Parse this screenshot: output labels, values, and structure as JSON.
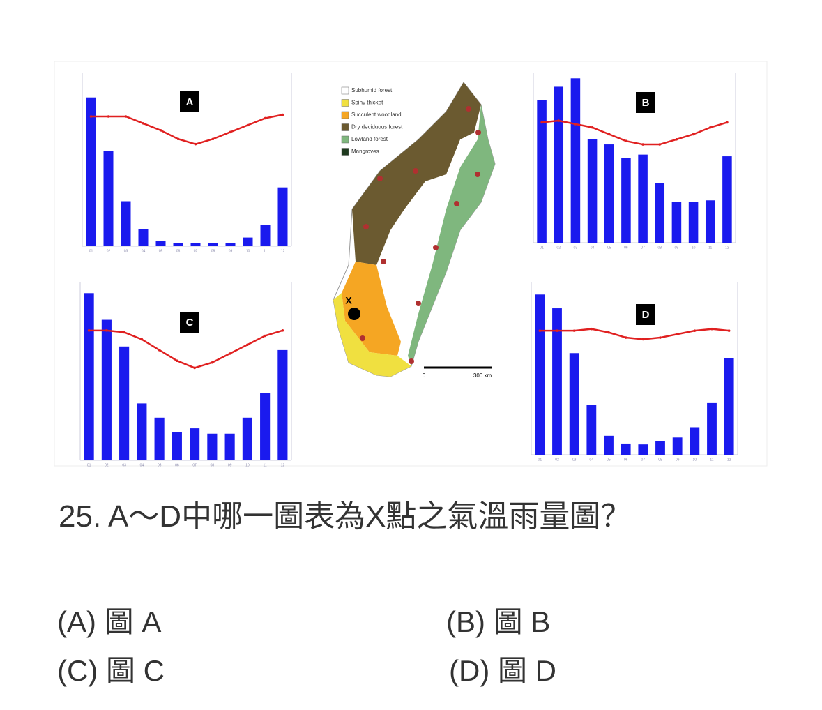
{
  "chart_data": [
    {
      "type": "bar",
      "title": "A",
      "categories": [
        "01",
        "02",
        "03",
        "04",
        "05",
        "06",
        "07",
        "08",
        "09",
        "10",
        "11",
        "12"
      ],
      "ylim": [
        0,
        100
      ],
      "series": [
        {
          "color": "#1a1aee",
          "values": [
            86,
            55,
            26,
            10,
            3,
            2,
            2,
            2,
            2,
            5,
            12.5,
            34
          ]
        },
        {
          "type": "line",
          "color": "#e02020",
          "values": [
            75,
            75,
            75,
            71,
            67,
            62,
            59,
            62,
            66,
            70,
            74,
            76
          ]
        }
      ]
    },
    {
      "type": "bar",
      "title": "B",
      "categories": [
        "01",
        "02",
        "03",
        "04",
        "05",
        "06",
        "07",
        "08",
        "09",
        "10",
        "11",
        "12"
      ],
      "ylim": [
        0,
        100
      ],
      "series": [
        {
          "color": "#1a1aee",
          "values": [
            84,
            92,
            97,
            61,
            58,
            50,
            52,
            35,
            24,
            24,
            25,
            51
          ]
        },
        {
          "type": "line",
          "color": "#e02020",
          "values": [
            71,
            72,
            70,
            68,
            64,
            60,
            58,
            58,
            61,
            64,
            68,
            71
          ]
        }
      ]
    },
    {
      "type": "bar",
      "title": "C",
      "categories": [
        "01",
        "02",
        "03",
        "04",
        "05",
        "06",
        "07",
        "08",
        "09",
        "10",
        "11",
        "12"
      ],
      "ylim": [
        0,
        100
      ],
      "series": [
        {
          "color": "#1a1aee",
          "values": [
            94,
            79,
            64,
            32,
            24,
            16,
            18,
            15,
            15,
            24,
            38,
            62
          ]
        },
        {
          "type": "line",
          "color": "#e02020",
          "values": [
            73,
            73,
            72,
            68,
            62,
            56,
            52,
            55,
            60,
            65,
            70,
            73
          ]
        }
      ]
    },
    {
      "type": "bar",
      "title": "D",
      "categories": [
        "01",
        "02",
        "03",
        "04",
        "05",
        "06",
        "07",
        "08",
        "09",
        "10",
        "11",
        "12"
      ],
      "ylim": [
        0,
        100
      ],
      "series": [
        {
          "color": "#1a1aee",
          "values": [
            93,
            85,
            59,
            29,
            11,
            6.5,
            6,
            8,
            10,
            16,
            30,
            56
          ]
        },
        {
          "type": "line",
          "color": "#e02020",
          "values": [
            72,
            72,
            72,
            73,
            71,
            68,
            67,
            68,
            70,
            72,
            73,
            72
          ]
        }
      ]
    }
  ],
  "map": {
    "legend": [
      "Subhumid forest",
      "Spiny thicket",
      "Succulent woodland",
      "Dry deciduous forest",
      "Lowland forest",
      "Mangroves"
    ],
    "marker": "X",
    "scale_start": "0",
    "scale_end": "300 km"
  },
  "question": {
    "text": "25.  A～D中哪一圖表為X點之氣溫雨量圖？",
    "options": [
      "(A) 圖 A",
      "(B) 圖 B",
      "(C) 圖 C",
      "(D) 圖 D"
    ]
  }
}
